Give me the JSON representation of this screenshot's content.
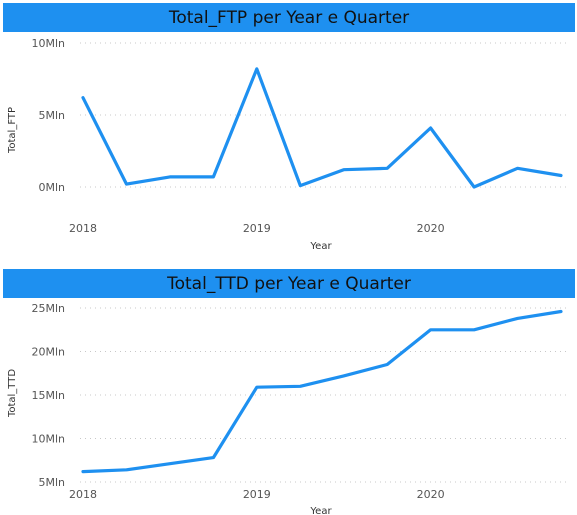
{
  "colors": {
    "title_bar": "#1e90f0",
    "series": "#1e90f0"
  },
  "chart_data": [
    {
      "type": "line",
      "title": "Total_FTP per Year e Quarter",
      "xlabel": "Year",
      "ylabel": "Total_FTP",
      "x_ticks": [
        "2018",
        "2019",
        "2020"
      ],
      "y_ticks": [
        {
          "value": 0,
          "label": "0Mln"
        },
        {
          "value": 5,
          "label": "5Mln"
        },
        {
          "value": 10,
          "label": "10Mln"
        }
      ],
      "ylim": [
        0,
        10
      ],
      "grid": true,
      "series": [
        {
          "x": [
            "2018 Q1",
            "2018 Q2",
            "2018 Q3",
            "2018 Q4",
            "2019 Q1",
            "2019 Q2",
            "2019 Q3",
            "2019 Q4",
            "2020 Q1",
            "2020 Q2",
            "2020 Q3",
            "2020 Q4"
          ],
          "values": [
            6.2,
            0.2,
            0.7,
            0.7,
            8.2,
            0.1,
            1.2,
            1.3,
            4.1,
            0.0,
            1.3,
            0.8
          ]
        }
      ]
    },
    {
      "type": "line",
      "title": "Total_TTD per Year e Quarter",
      "xlabel": "Year",
      "ylabel": "Total_TTD",
      "x_ticks": [
        "2018",
        "2019",
        "2020"
      ],
      "y_ticks": [
        {
          "value": 5,
          "label": "5Mln"
        },
        {
          "value": 10,
          "label": "10Mln"
        },
        {
          "value": 15,
          "label": "15Mln"
        },
        {
          "value": 20,
          "label": "20Mln"
        },
        {
          "value": 25,
          "label": "25Mln"
        }
      ],
      "ylim": [
        5,
        25
      ],
      "grid": true,
      "series": [
        {
          "x": [
            "2018 Q1",
            "2018 Q2",
            "2018 Q3",
            "2018 Q4",
            "2019 Q1",
            "2019 Q2",
            "2019 Q3",
            "2019 Q4",
            "2020 Q1",
            "2020 Q2",
            "2020 Q3",
            "2020 Q4"
          ],
          "values": [
            6.2,
            6.4,
            7.1,
            7.8,
            15.9,
            16.0,
            17.2,
            18.5,
            22.5,
            22.5,
            23.8,
            24.6
          ]
        }
      ]
    }
  ]
}
